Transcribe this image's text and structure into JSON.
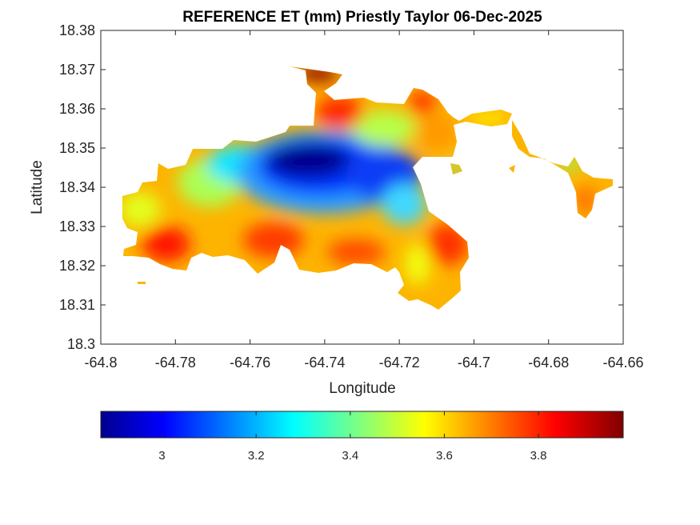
{
  "chart_data": {
    "type": "heatmap",
    "title": "REFERENCE ET (mm) Priestly Taylor 06-Dec-2025",
    "xlabel": "Longitude",
    "ylabel": "Latitude",
    "xlim": [
      -64.8,
      -64.66
    ],
    "ylim": [
      18.3,
      18.38
    ],
    "xticks": [
      -64.8,
      -64.78,
      -64.76,
      -64.74,
      -64.72,
      -64.7,
      -64.68,
      -64.66
    ],
    "xtick_labels": [
      "-64.8",
      "-64.78",
      "-64.76",
      "-64.74",
      "-64.72",
      "-64.7",
      "-64.68",
      "-64.66"
    ],
    "yticks": [
      18.3,
      18.31,
      18.32,
      18.33,
      18.34,
      18.35,
      18.36,
      18.37,
      18.38
    ],
    "ytick_labels": [
      "18.3",
      "18.31",
      "18.32",
      "18.33",
      "18.34",
      "18.35",
      "18.36",
      "18.37",
      "18.38"
    ],
    "colorbar": {
      "colormap": "jet",
      "range": [
        2.87,
        3.98
      ],
      "ticks": [
        3.0,
        3.2,
        3.4,
        3.6,
        3.8
      ],
      "tick_labels": [
        "3",
        "3.2",
        "3.4",
        "3.6",
        "3.8"
      ],
      "orientation": "horizontal"
    },
    "colormap_stops": [
      "#00008f",
      "#0000ff",
      "#00ffff",
      "#ffff00",
      "#ff0000",
      "#800000"
    ],
    "grid": false,
    "regions": [
      {
        "name": "north-peak",
        "lon": -64.7395,
        "lat": 18.3595,
        "value": 3.92
      },
      {
        "name": "northwest-tip",
        "lon": -64.7365,
        "lat": 18.3695,
        "value": 3.97
      },
      {
        "name": "central-low",
        "lon": -64.746,
        "lat": 18.347,
        "value": 2.9
      },
      {
        "name": "central-low-east",
        "lon": -64.733,
        "lat": 18.344,
        "value": 3.0
      },
      {
        "name": "east-channel",
        "lon": -64.724,
        "lat": 18.342,
        "value": 3.1
      },
      {
        "name": "west-mid",
        "lon": -64.768,
        "lat": 18.339,
        "value": 3.45
      },
      {
        "name": "southwest-peak",
        "lon": -64.783,
        "lat": 18.325,
        "value": 3.85
      },
      {
        "name": "south-central",
        "lon": -64.75,
        "lat": 18.326,
        "value": 3.75
      },
      {
        "name": "south-east",
        "lon": -64.713,
        "lat": 18.323,
        "value": 3.75
      },
      {
        "name": "far-west",
        "lon": -64.79,
        "lat": 18.334,
        "value": 3.55
      },
      {
        "name": "northeast-strip",
        "lon": -64.71,
        "lat": 18.36,
        "value": 3.65
      },
      {
        "name": "east-spur",
        "lon": -64.669,
        "lat": 18.339,
        "value": 3.6
      }
    ]
  }
}
